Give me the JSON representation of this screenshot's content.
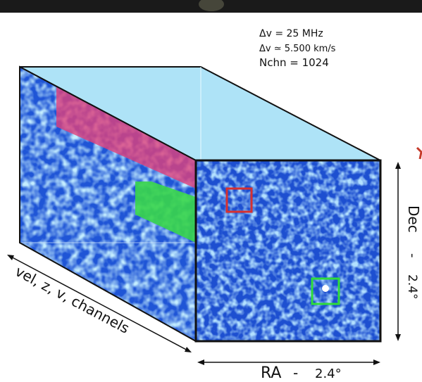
{
  "params": {
    "line1": "Δv = 25 MHz",
    "line2": "Δv ≃ 5.500 km/s",
    "line3": "Nchn = 1024"
  },
  "axes": {
    "depth_label": "vel, z, v, channels",
    "ra_label": "RA",
    "ra_dash": "-",
    "ra_value": "2.4°",
    "dec_label": "Dec",
    "dec_dash": "-",
    "dec_value": "2.4°"
  },
  "colors": {
    "cube_noise_base": "#1f55d6",
    "cube_top": "#aee3f7",
    "slab_magenta": "#e0407a",
    "slab_green": "#38d64a",
    "box_red": "#d63030",
    "box_green": "#2fdc3a",
    "banner": "#1a1a1a"
  }
}
